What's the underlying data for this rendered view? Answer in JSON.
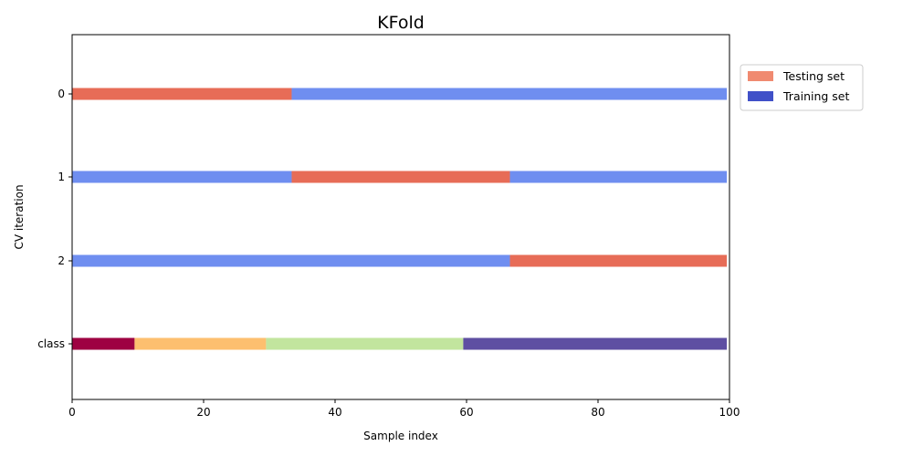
{
  "chart_data": {
    "type": "bar",
    "orientation": "horizontal",
    "title": "KFold",
    "xlabel": "Sample index",
    "ylabel": "CV iteration",
    "xlim": [
      0,
      100
    ],
    "xticks": [
      0,
      20,
      40,
      60,
      80,
      100
    ],
    "rows": [
      {
        "label": "0",
        "segments": [
          {
            "start": 0,
            "end": 33.4,
            "set": "Testing set"
          },
          {
            "start": 33.4,
            "end": 99.6,
            "set": "Training set"
          }
        ]
      },
      {
        "label": "1",
        "segments": [
          {
            "start": 0,
            "end": 33.4,
            "set": "Training set"
          },
          {
            "start": 33.4,
            "end": 66.6,
            "set": "Testing set"
          },
          {
            "start": 66.6,
            "end": 99.6,
            "set": "Training set"
          }
        ]
      },
      {
        "label": "2",
        "segments": [
          {
            "start": 0,
            "end": 66.6,
            "set": "Training set"
          },
          {
            "start": 66.6,
            "end": 99.6,
            "set": "Testing set"
          }
        ]
      },
      {
        "label": "class",
        "segments": [
          {
            "start": 0,
            "end": 9.5,
            "color": "#9e0142"
          },
          {
            "start": 9.5,
            "end": 29.5,
            "color": "#fdbf6f"
          },
          {
            "start": 29.5,
            "end": 59.5,
            "color": "#c2e59e"
          },
          {
            "start": 59.5,
            "end": 99.6,
            "color": "#5e4fa2"
          }
        ]
      }
    ],
    "legend": {
      "placement": "outside-top-right",
      "entries": [
        {
          "label": "Testing set",
          "color": "#f08a70"
        },
        {
          "label": "Training set",
          "color": "#4050c8"
        }
      ]
    },
    "colors": {
      "Testing set": "#e76c57",
      "Training set": "#6f8ef0"
    },
    "grid": false
  }
}
